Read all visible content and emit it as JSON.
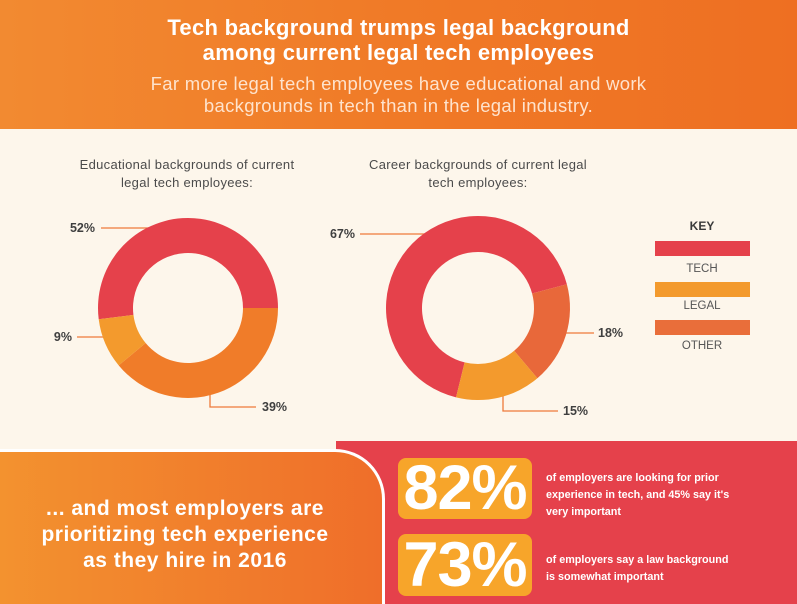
{
  "header": {
    "title_lines": [
      "Tech background trumps legal background",
      "among current legal tech employees"
    ],
    "subtitle_lines": [
      "Far more legal tech employees have educational and work",
      "backgrounds in tech than in the legal industry."
    ]
  },
  "chart_data": [
    {
      "type": "pie",
      "donut": true,
      "title_lines": [
        "Educational backgrounds of current",
        "legal tech employees:"
      ],
      "values": [
        52,
        9,
        39
      ],
      "labels": [
        "52%",
        "9%",
        "39%"
      ],
      "colors": [
        "#E5414B",
        "#F39A2D",
        "#F07C29"
      ],
      "legend": "right"
    },
    {
      "type": "pie",
      "donut": true,
      "title_lines": [
        "Career backgrounds of current legal",
        "tech employees:"
      ],
      "values": [
        67,
        15,
        18
      ],
      "labels": [
        "67%",
        "15%",
        "18%"
      ],
      "colors": [
        "#E5414B",
        "#F39A2D",
        "#E8683A"
      ],
      "legend": "right"
    }
  ],
  "key": {
    "title": "KEY",
    "items": [
      "TECH",
      "LEGAL",
      "OTHER"
    ],
    "colors": [
      "#E5414B",
      "#F39A2D",
      "#E96E3A"
    ]
  },
  "callout": {
    "lines": [
      "... and most employers are",
      "prioritizing tech experience",
      "as they hire in 2016"
    ]
  },
  "stats": [
    {
      "value": "82%",
      "text_lines": [
        "of employers are looking for prior",
        "experience in tech, and 45% say it's",
        "very important"
      ]
    },
    {
      "value": "73%",
      "text_lines": [
        "of employers say a law background",
        "is somewhat important"
      ]
    }
  ],
  "colors": {
    "stat_box": "#F7A52A",
    "stats_panel": "#E5414B",
    "leader_line": "#EE7A3A"
  }
}
